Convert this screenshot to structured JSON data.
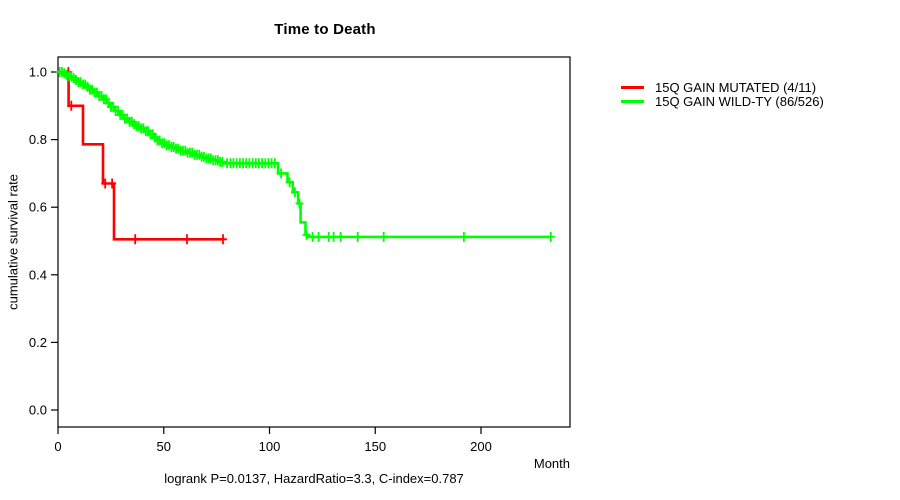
{
  "title": "Time to Death",
  "x_axis": {
    "label": "Month",
    "ticks": [
      0,
      50,
      100,
      150,
      200
    ]
  },
  "y_axis": {
    "label": "cumulative survival rate",
    "ticks": [
      "0.0",
      "0.2",
      "0.4",
      "0.6",
      "0.8",
      "1.0"
    ]
  },
  "footer": {
    "annotation": "logrank P=0.0137, HazardRatio=3.3, C-index=0.787"
  },
  "legend": {
    "items": [
      {
        "label": "15Q GAIN MUTATED (4/11)",
        "color": "#ff0000"
      },
      {
        "label": "15Q GAIN WILD-TY (86/526)",
        "color": "#00ff00"
      }
    ]
  },
  "colors": {
    "axis": "#000000",
    "background": "#ffffff",
    "mutated": "#ff0000",
    "wildtype": "#00ff00"
  },
  "chart_data": {
    "type": "line",
    "subtype": "kaplan-meier-step-function",
    "title": "Time to Death",
    "xlabel": "Month",
    "ylabel": "cumulative survival rate",
    "xlim": [
      0,
      242
    ],
    "ylim": [
      0,
      1
    ],
    "grid": false,
    "legend_position": "right-outside",
    "series": [
      {
        "name": "15Q GAIN MUTATED (4/11)",
        "color": "#ff0000",
        "events": "4/11",
        "end_month": 78.7,
        "steps": [
          [
            0,
            1.0
          ],
          [
            5,
            0.9
          ],
          [
            11.8,
            0.786
          ],
          [
            21.3,
            0.67
          ],
          [
            26.5,
            0.505
          ]
        ],
        "censor_months": [
          4.9,
          6.3,
          22.3,
          25.6,
          36.5,
          61,
          78
        ]
      },
      {
        "name": "15Q GAIN WILD-TY (86/526)",
        "color": "#00ff00",
        "events": "86/526",
        "end_month": 233,
        "steps": [
          [
            0,
            1.0
          ],
          [
            2,
            0.996
          ],
          [
            3.5,
            0.992
          ],
          [
            5,
            0.987
          ],
          [
            6.5,
            0.982
          ],
          [
            8,
            0.976
          ],
          [
            9.5,
            0.97
          ],
          [
            11,
            0.963
          ],
          [
            13,
            0.956
          ],
          [
            15,
            0.948
          ],
          [
            17,
            0.939
          ],
          [
            19,
            0.929
          ],
          [
            21,
            0.919
          ],
          [
            23,
            0.908
          ],
          [
            25,
            0.897
          ],
          [
            27,
            0.885
          ],
          [
            29,
            0.873
          ],
          [
            31,
            0.862
          ],
          [
            33,
            0.853
          ],
          [
            35,
            0.846
          ],
          [
            37,
            0.84
          ],
          [
            39,
            0.833
          ],
          [
            41,
            0.825
          ],
          [
            43,
            0.816
          ],
          [
            45,
            0.806
          ],
          [
            47,
            0.797
          ],
          [
            49,
            0.789
          ],
          [
            51,
            0.783
          ],
          [
            53,
            0.778
          ],
          [
            55,
            0.773
          ],
          [
            58,
            0.767
          ],
          [
            61,
            0.761
          ],
          [
            64,
            0.755
          ],
          [
            67,
            0.749
          ],
          [
            70,
            0.744
          ],
          [
            73,
            0.739
          ],
          [
            76,
            0.734
          ],
          [
            79,
            0.73
          ],
          [
            104,
            0.7
          ],
          [
            108.5,
            0.674
          ],
          [
            111,
            0.644
          ],
          [
            113.5,
            0.611
          ],
          [
            114.7,
            0.555
          ],
          [
            117,
            0.518
          ],
          [
            118.5,
            0.512
          ]
        ],
        "censor_months": [
          0.8,
          1.9,
          3.0,
          4.1,
          5.2,
          6.3,
          7.4,
          8.5,
          9.6,
          10.7,
          11.8,
          12.9,
          14,
          15.1,
          16.2,
          17.3,
          18.4,
          19.5,
          20.6,
          21.7,
          22.8,
          23.9,
          25,
          26.1,
          27.2,
          28.3,
          29.4,
          30.5,
          31.6,
          32.7,
          33.8,
          34.9,
          36,
          37.1,
          38.2,
          39.3,
          40.4,
          41.5,
          42.6,
          43.7,
          44.8,
          45.9,
          47,
          48.1,
          49.2,
          50.3,
          51.4,
          52.5,
          53.6,
          54.7,
          55.8,
          56.9,
          58,
          59.1,
          60.2,
          61.3,
          62.4,
          63.5,
          64.6,
          65.7,
          66.8,
          67.9,
          69,
          70.1,
          71.2,
          72.3,
          73.4,
          74.5,
          75.6,
          76.7,
          77.8,
          80,
          81.5,
          83,
          84.5,
          86,
          87.5,
          89,
          90.5,
          92,
          93.5,
          95,
          96.5,
          98,
          99.5,
          101,
          102.5,
          105.5,
          109.5,
          112,
          114.2,
          117.5,
          120.4,
          123.2,
          128,
          130.3,
          133.6,
          141.7,
          154,
          191.9,
          233
        ]
      }
    ]
  }
}
